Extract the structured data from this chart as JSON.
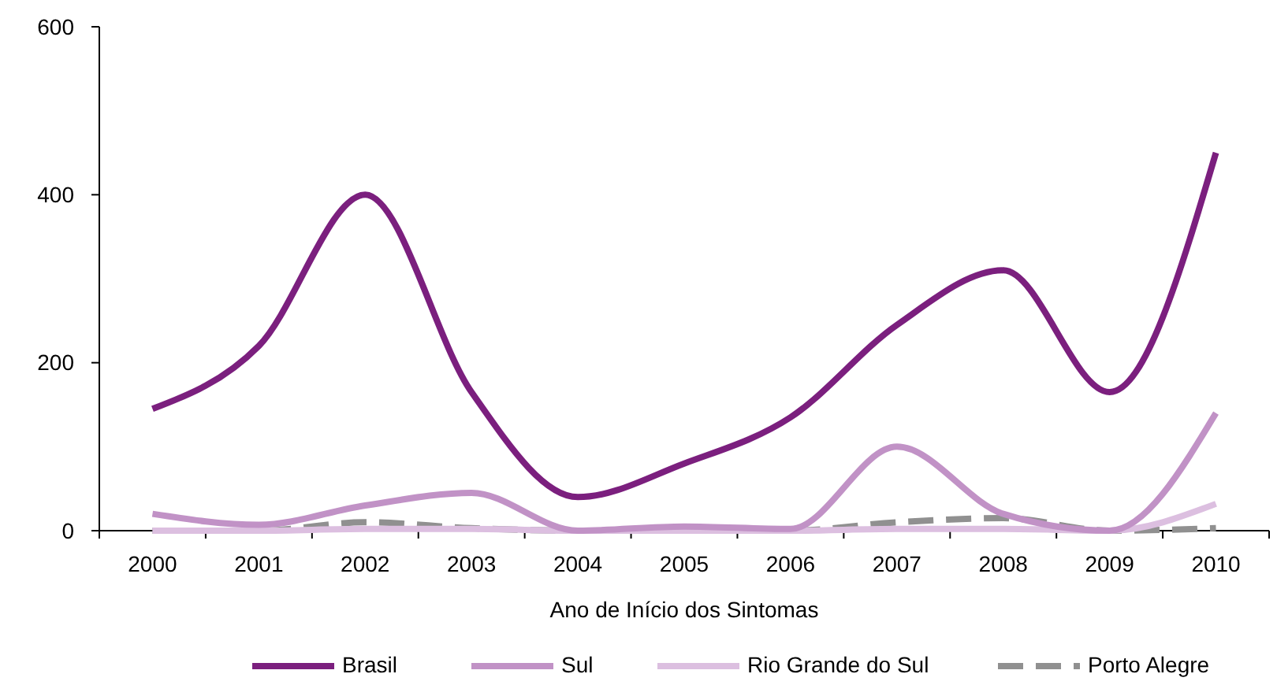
{
  "chart_data": {
    "type": "line",
    "xlabel": "Ano de Início dos Sintomas",
    "categories": [
      "2000",
      "2001",
      "2002",
      "2003",
      "2004",
      "2005",
      "2006",
      "2007",
      "2008",
      "2009",
      "2010"
    ],
    "series": [
      {
        "name": "Brasil",
        "color": "#7b1f7e",
        "values": [
          145,
          220,
          400,
          165,
          40,
          80,
          135,
          245,
          310,
          165,
          450
        ]
      },
      {
        "name": "Sul",
        "color": "#c192c6",
        "values": [
          20,
          7,
          30,
          45,
          0,
          5,
          2,
          100,
          20,
          0,
          140
        ]
      },
      {
        "name": "Rio Grande do Sul",
        "color": "#dcbfe0",
        "values": [
          0,
          0,
          2,
          2,
          0,
          0,
          0,
          2,
          2,
          0,
          32
        ]
      },
      {
        "name": "Porto Alegre",
        "color": "#909090",
        "line_style": "dashed",
        "values": [
          0,
          0,
          10,
          3,
          0,
          0,
          0,
          10,
          15,
          0,
          3
        ]
      }
    ],
    "ylim": [
      0,
      600
    ],
    "yticks": [
      0,
      200,
      400,
      600
    ],
    "grid": false,
    "legend": "bottom",
    "line_style": "solid"
  }
}
